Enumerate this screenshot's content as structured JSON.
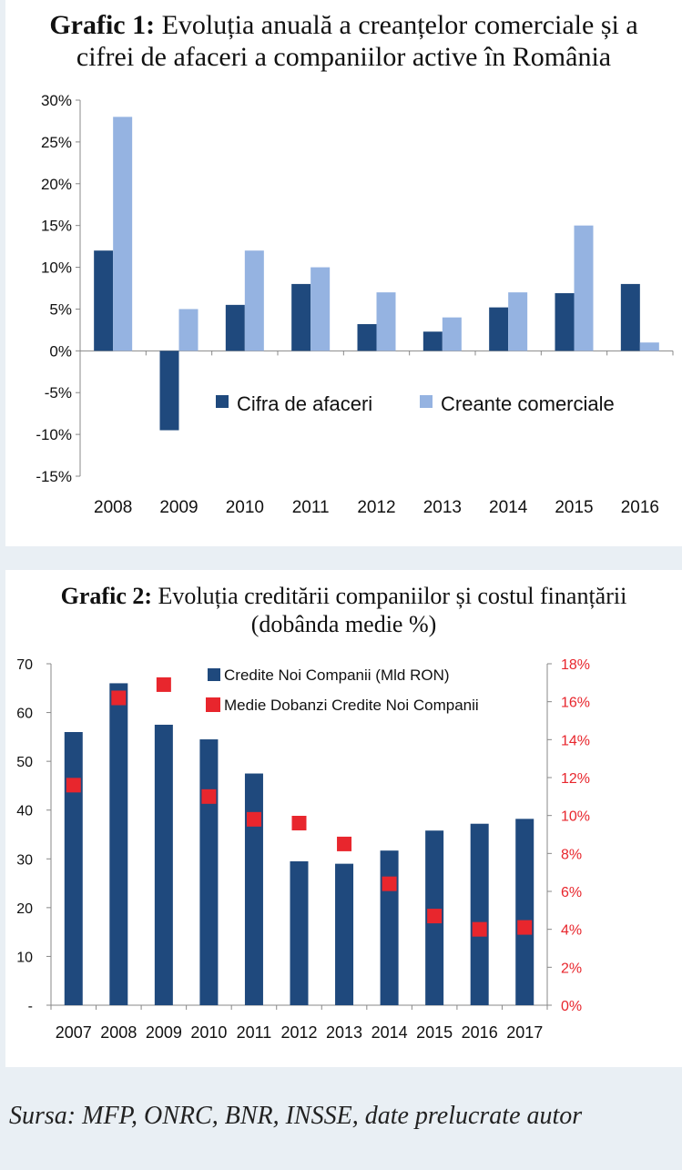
{
  "chart_data": [
    {
      "type": "bar",
      "title_prefix": "Grafic 1:",
      "title_line1": "Evoluția anuală a creanțelor comerciale și a",
      "title_line2": "cifrei de afaceri a companiilor active în România",
      "categories": [
        "2008",
        "2009",
        "2010",
        "2011",
        "2012",
        "2013",
        "2014",
        "2015",
        "2016"
      ],
      "series": [
        {
          "name": "Cifra de afaceri",
          "color": "#1f497d",
          "values": [
            12,
            -9.5,
            5.5,
            8,
            3.2,
            2.3,
            5.2,
            6.9,
            8
          ]
        },
        {
          "name": "Creante comerciale",
          "color": "#95b3e1",
          "values": [
            28,
            5,
            12,
            10,
            7,
            4,
            7,
            15,
            1
          ]
        }
      ],
      "ylim": [
        -15,
        30
      ],
      "yticks": [
        -15,
        -10,
        -5,
        0,
        5,
        10,
        15,
        20,
        25,
        30
      ],
      "ytick_labels": [
        "-15%",
        "-10%",
        "-5%",
        "0%",
        "5%",
        "10%",
        "15%",
        "20%",
        "25%",
        "30%"
      ],
      "legend_position": "inside-lower-right",
      "grid": false
    },
    {
      "type": "bar+scatter",
      "title_prefix": "Grafic 2:",
      "title_line1": "Evoluția creditării companiilor și costul finanțării",
      "title_line2": "(dobânda medie %)",
      "categories": [
        "2007",
        "2008",
        "2009",
        "2010",
        "2011",
        "2012",
        "2013",
        "2014",
        "2015",
        "2016",
        "2017"
      ],
      "series": [
        {
          "name": "Credite Noi Companii (Mld RON)",
          "type": "bar",
          "axis": "left",
          "color": "#1f497d",
          "values": [
            56,
            66,
            57.5,
            54.5,
            47.5,
            29.5,
            29,
            31.7,
            35.8,
            37.2,
            38.2
          ]
        },
        {
          "name": "Medie Dobanzi Credite Noi Companii",
          "type": "scatter",
          "axis": "right",
          "color": "#e8262d",
          "values": [
            11.6,
            16.2,
            16.9,
            11.0,
            9.8,
            9.6,
            8.5,
            6.4,
            4.7,
            4.0,
            4.1
          ]
        }
      ],
      "ylim_left": [
        0,
        70
      ],
      "yticks_left": [
        0,
        10,
        20,
        30,
        40,
        50,
        60,
        70
      ],
      "ytick_labels_left": [
        "-",
        "10",
        "20",
        "30",
        "40",
        "50",
        "60",
        "70"
      ],
      "ylim_right": [
        0,
        18
      ],
      "yticks_right": [
        0,
        2,
        4,
        6,
        8,
        10,
        12,
        14,
        16,
        18
      ],
      "ytick_labels_right": [
        "0%",
        "2%",
        "4%",
        "6%",
        "8%",
        "10%",
        "12%",
        "14%",
        "16%",
        "18%"
      ],
      "right_axis_color": "#e8262d",
      "legend_position": "top-right",
      "grid": false
    }
  ],
  "source": "Sursa: MFP, ONRC, BNR, INSSE, date prelucrate autor"
}
